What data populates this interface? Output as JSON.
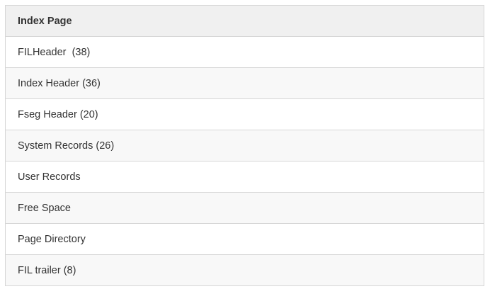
{
  "table": {
    "header": "Index Page",
    "rows": [
      "FILHeader  (38)",
      "Index Header (36)",
      "Fseg Header (20)",
      "System Records (26)",
      "User Records",
      "Free Space",
      "Page Directory",
      "FIL trailer (8)"
    ]
  }
}
